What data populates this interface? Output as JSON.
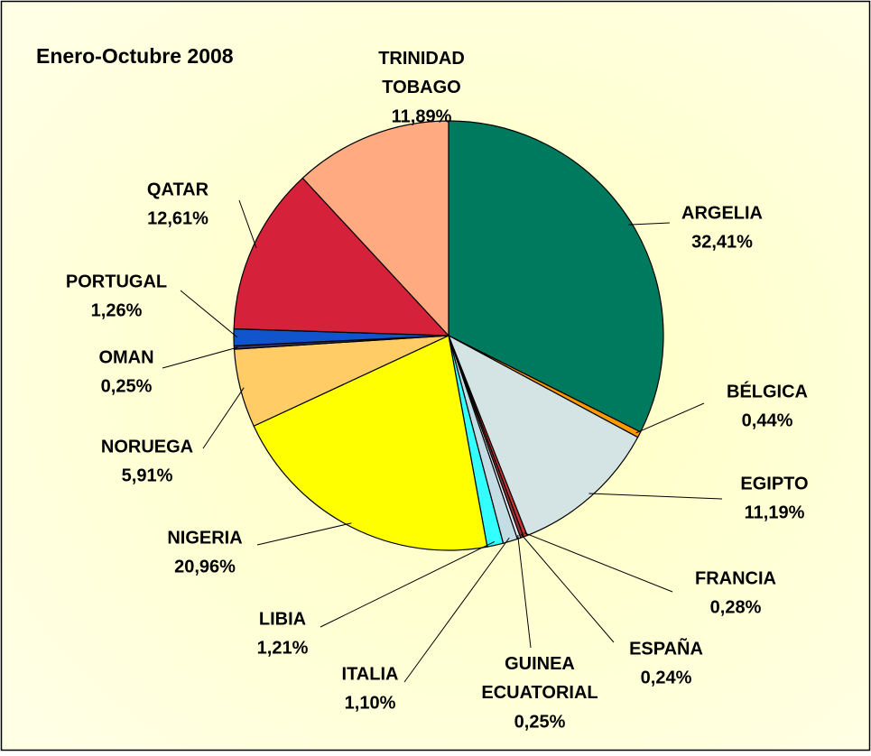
{
  "chart_data": {
    "type": "pie",
    "title": "Enero-Octubre 2008",
    "categories": [
      "ARGELIA",
      "BÉLGICA",
      "EGIPTO",
      "FRANCIA",
      "ESPAÑA",
      "GUINEA ECUATORIAL",
      "ITALIA",
      "LIBIA",
      "NIGERIA",
      "NORUEGA",
      "OMAN",
      "PORTUGAL",
      "QATAR",
      "TRINIDAD TOBAGO"
    ],
    "values": [
      32.41,
      0.44,
      11.19,
      0.28,
      0.24,
      0.25,
      1.1,
      1.21,
      20.96,
      5.91,
      0.25,
      1.26,
      12.61,
      11.89
    ],
    "value_labels": [
      "32,41%",
      "0,44%",
      "11,19%",
      "0,28%",
      "0,24%",
      "0,25%",
      "1,10%",
      "1,21%",
      "20,96%",
      "5,91%",
      "0,25%",
      "1,26%",
      "12,61%",
      "11,89%"
    ],
    "colors": [
      "#007A5E",
      "#FF9900",
      "#D4E4E4",
      "#CC3333",
      "#993333",
      "#E2EAF2",
      "#C4DCE4",
      "#33FFFF",
      "#FFFF00",
      "#FFCC66",
      "#333366",
      "#1155CC",
      "#D6213B",
      "#FFAA80"
    ]
  }
}
